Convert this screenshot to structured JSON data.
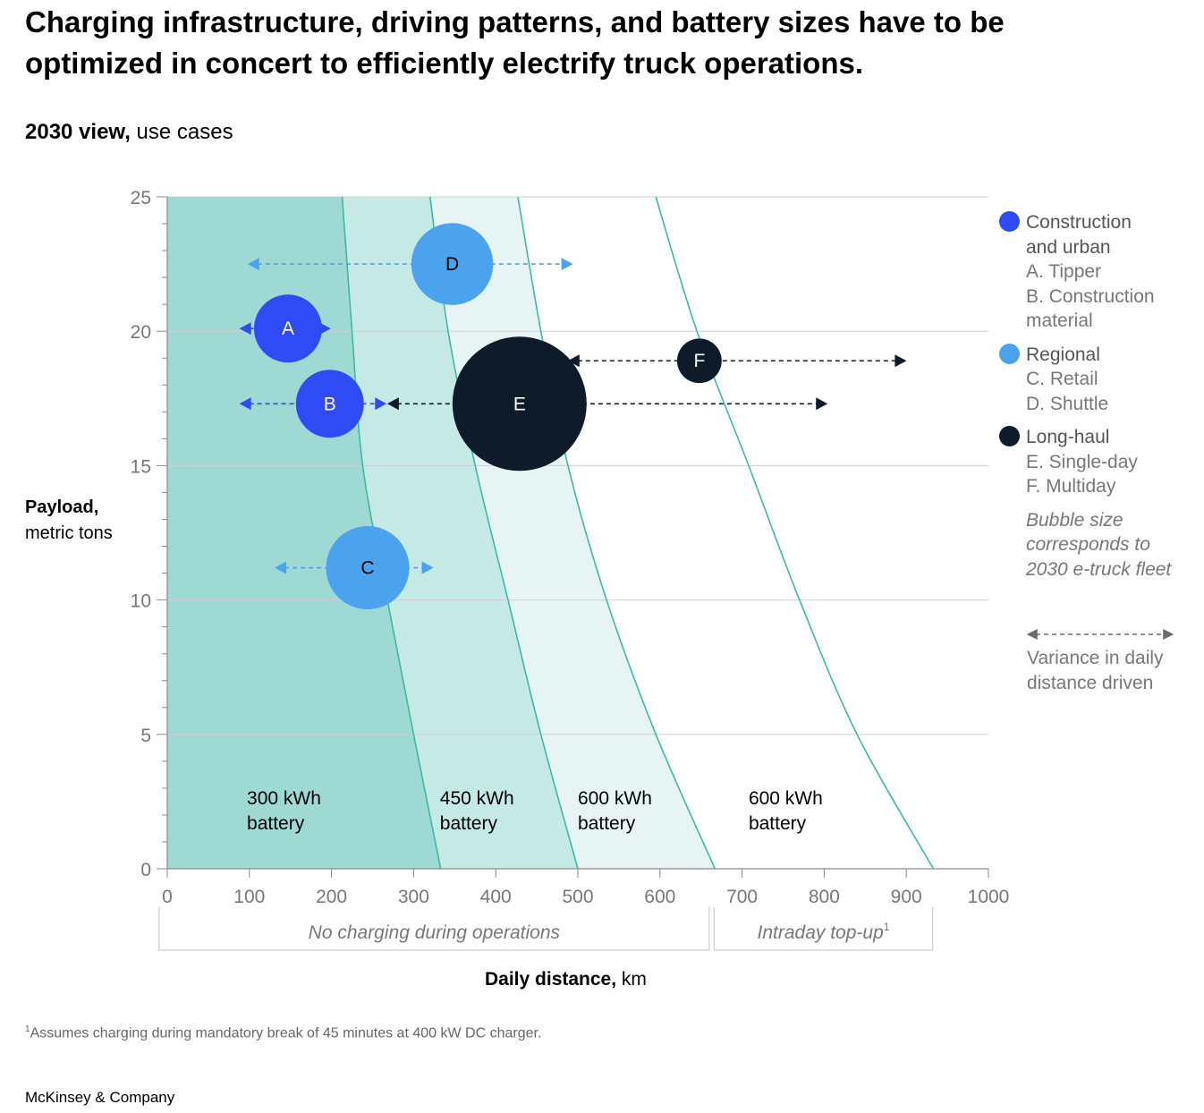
{
  "title": "Charging infrastructure, driving patterns, and battery sizes have to be optimized in concert to efficiently electrify truck operations.",
  "subtitle": {
    "bold": "2030 view,",
    "rest": " use cases"
  },
  "colors": {
    "construction": "#2E4BF5",
    "regional": "#4BA3EE",
    "longhaul": "#0D1B2A",
    "band300": "#9FD9D3",
    "band450": "#C5EAE6",
    "band600": "#E6F5F4",
    "curve": "#3DB7A6"
  },
  "chart_data": {
    "type": "scatter",
    "xlabel": {
      "bold": "Daily distance,",
      "unit": " km"
    },
    "ylabel": {
      "bold": "Payload,",
      "unit": "metric tons"
    },
    "xlim": [
      0,
      1000
    ],
    "ylim": [
      0,
      25
    ],
    "x_ticks": [
      0,
      100,
      200,
      300,
      400,
      500,
      600,
      700,
      800,
      900,
      1000
    ],
    "y_ticks": [
      0,
      5,
      10,
      15,
      20,
      25
    ],
    "bubbles": [
      {
        "id": "A",
        "x": 147,
        "y": 20.1,
        "size": 1.0,
        "group": "construction",
        "range": [
          90,
          197
        ]
      },
      {
        "id": "B",
        "x": 198,
        "y": 17.3,
        "size": 1.0,
        "group": "construction",
        "range": [
          90,
          265
        ]
      },
      {
        "id": "C",
        "x": 244,
        "y": 11.2,
        "size": 1.5,
        "group": "regional",
        "range": [
          133,
          322
        ]
      },
      {
        "id": "D",
        "x": 347,
        "y": 22.5,
        "size": 1.45,
        "group": "regional",
        "range": [
          100,
          492
        ]
      },
      {
        "id": "E",
        "x": 429,
        "y": 17.3,
        "size": 3.9,
        "group": "longhaul",
        "range": [
          270,
          802
        ]
      },
      {
        "id": "F",
        "x": 648,
        "y": 18.9,
        "size": 0.43,
        "group": "longhaul",
        "range": [
          490,
          898
        ]
      }
    ],
    "battery_curves": [
      {
        "points": [
          [
            213,
            25
          ],
          [
            225,
            20
          ],
          [
            238,
            15
          ],
          [
            268,
            10
          ],
          [
            300,
            5
          ],
          [
            333,
            0
          ]
        ]
      },
      {
        "points": [
          [
            320,
            25
          ],
          [
            342,
            20
          ],
          [
            375,
            15
          ],
          [
            415,
            10
          ],
          [
            455,
            5
          ],
          [
            500,
            0
          ]
        ]
      },
      {
        "points": [
          [
            427,
            25
          ],
          [
            455,
            20
          ],
          [
            488,
            15
          ],
          [
            535,
            10
          ],
          [
            595,
            5
          ],
          [
            667,
            0
          ]
        ]
      },
      {
        "points": [
          [
            595,
            25
          ],
          [
            645,
            20
          ],
          [
            708,
            15
          ],
          [
            770,
            10
          ],
          [
            840,
            5
          ],
          [
            933,
            0
          ]
        ]
      }
    ],
    "battery_labels": [
      {
        "line1": "300 kWh",
        "line2": "battery",
        "x": 97,
        "y": 2.4
      },
      {
        "line1": "450 kWh",
        "line2": "battery",
        "x": 332,
        "y": 2.4
      },
      {
        "line1": "600 kWh",
        "line2": "battery",
        "x": 500,
        "y": 2.4
      },
      {
        "line1": "600 kWh",
        "line2": "battery",
        "x": 708,
        "y": 2.4
      }
    ],
    "charging_zones": [
      {
        "label": "No charging during operations",
        "sup": "",
        "range": [
          -10,
          660
        ]
      },
      {
        "label": "Intraday top-up",
        "sup": "1",
        "range": [
          666,
          932
        ]
      }
    ]
  },
  "legend": {
    "groups": [
      {
        "key": "construction",
        "head": [
          "Construction",
          "and urban"
        ],
        "items": [
          "A. Tipper",
          "B. Construction",
          "material"
        ]
      },
      {
        "key": "regional",
        "head": [
          "Regional"
        ],
        "items": [
          "C. Retail",
          "D. Shuttle"
        ]
      },
      {
        "key": "longhaul",
        "head": [
          "Long-haul"
        ],
        "items": [
          "E. Single-day",
          "F. Multiday"
        ]
      }
    ],
    "bubble_note": [
      "Bubble size",
      "corresponds to",
      "2030 e-truck fleet"
    ],
    "variance_note": [
      "Variance in daily",
      "distance driven"
    ]
  },
  "footnote": {
    "sup": "1",
    "text": "Assumes charging during mandatory break of 45 minutes at 400 kW DC charger."
  },
  "brand": "McKinsey & Company"
}
